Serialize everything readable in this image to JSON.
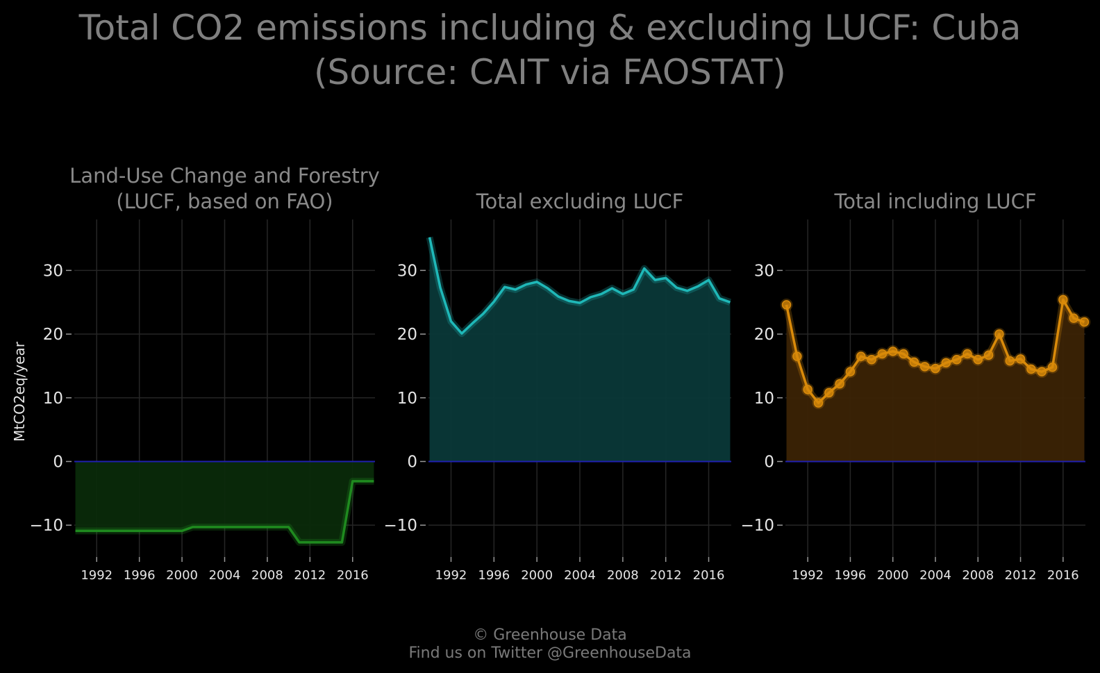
{
  "title_line1": "Total CO2 emissions including & excluding LUCF: Cuba",
  "title_line2": "(Source: CAIT via FAOSTAT)",
  "footer_line1": "© Greenhouse Data",
  "footer_line2": "Find us on Twitter @GreenhouseData",
  "chart_data": {
    "type": "area",
    "ylabel": "MtCO2eq/year",
    "ylim": [
      -15,
      38
    ],
    "yticks": [
      -10,
      0,
      10,
      20,
      30
    ],
    "ytick_labels": [
      "−10",
      "0",
      "10",
      "20",
      "30"
    ],
    "xlim": [
      1989.9,
      2018.1
    ],
    "xticks": [
      1992,
      1996,
      2000,
      2004,
      2008,
      2012,
      2016
    ],
    "grid": true,
    "x": [
      1990,
      1991,
      1992,
      1993,
      1994,
      1995,
      1996,
      1997,
      1998,
      1999,
      2000,
      2001,
      2002,
      2003,
      2004,
      2005,
      2006,
      2007,
      2008,
      2009,
      2010,
      2011,
      2012,
      2013,
      2014,
      2015,
      2016,
      2017,
      2018
    ],
    "panels": [
      {
        "title_lines": [
          "Land-Use Change and Forestry",
          "(LUCF, based on FAO)"
        ],
        "color": "#1f8a1f",
        "fill": "#0a2a0a",
        "markers": false,
        "values": [
          -10.9,
          -10.9,
          -10.9,
          -10.9,
          -10.9,
          -10.9,
          -10.9,
          -10.9,
          -10.9,
          -10.9,
          -10.9,
          -10.3,
          -10.3,
          -10.3,
          -10.3,
          -10.3,
          -10.3,
          -10.3,
          -10.3,
          -10.3,
          -10.3,
          -12.7,
          -12.7,
          -12.7,
          -12.7,
          -12.7,
          -3.1,
          -3.1,
          -3.1
        ]
      },
      {
        "title_lines": [
          "Total excluding LUCF"
        ],
        "color": "#1fb8b8",
        "fill": "#0a3838",
        "markers": false,
        "values": [
          35.2,
          27.3,
          22.0,
          20.1,
          21.7,
          23.2,
          25.1,
          27.4,
          27.0,
          27.8,
          28.2,
          27.2,
          25.9,
          25.2,
          24.9,
          25.8,
          26.3,
          27.2,
          26.3,
          27.0,
          30.3,
          28.5,
          28.8,
          27.3,
          26.8,
          27.5,
          28.5,
          25.6,
          25.0
        ]
      },
      {
        "title_lines": [
          "Total including LUCF"
        ],
        "color": "#d98a0a",
        "fill": "#3b2305",
        "markers": true,
        "values": [
          24.6,
          16.5,
          11.3,
          9.2,
          10.8,
          12.2,
          14.1,
          16.5,
          16.0,
          16.9,
          17.3,
          16.9,
          15.6,
          14.9,
          14.6,
          15.5,
          16.0,
          16.9,
          16.0,
          16.7,
          20.0,
          15.8,
          16.1,
          14.5,
          14.1,
          14.8,
          25.4,
          22.5,
          21.9
        ]
      }
    ]
  }
}
